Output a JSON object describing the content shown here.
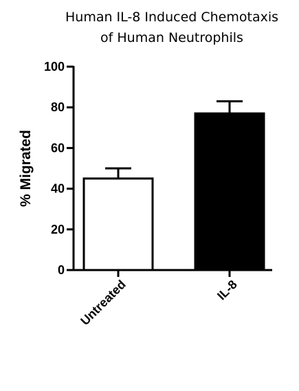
{
  "chart_data": {
    "type": "bar",
    "title_lines": [
      "Human IL-8 Induced Chemotaxis",
      "of Human Neutrophils"
    ],
    "ylabel": "% Migrated",
    "xlabel": "",
    "categories": [
      "Untreated",
      "IL-8"
    ],
    "values": [
      45,
      77
    ],
    "errors": [
      5,
      6
    ],
    "bar_fills": [
      "#ffffff",
      "#000000"
    ],
    "ylim": [
      0,
      100
    ],
    "yticks": [
      0,
      20,
      40,
      60,
      80,
      100
    ],
    "grid": false
  }
}
